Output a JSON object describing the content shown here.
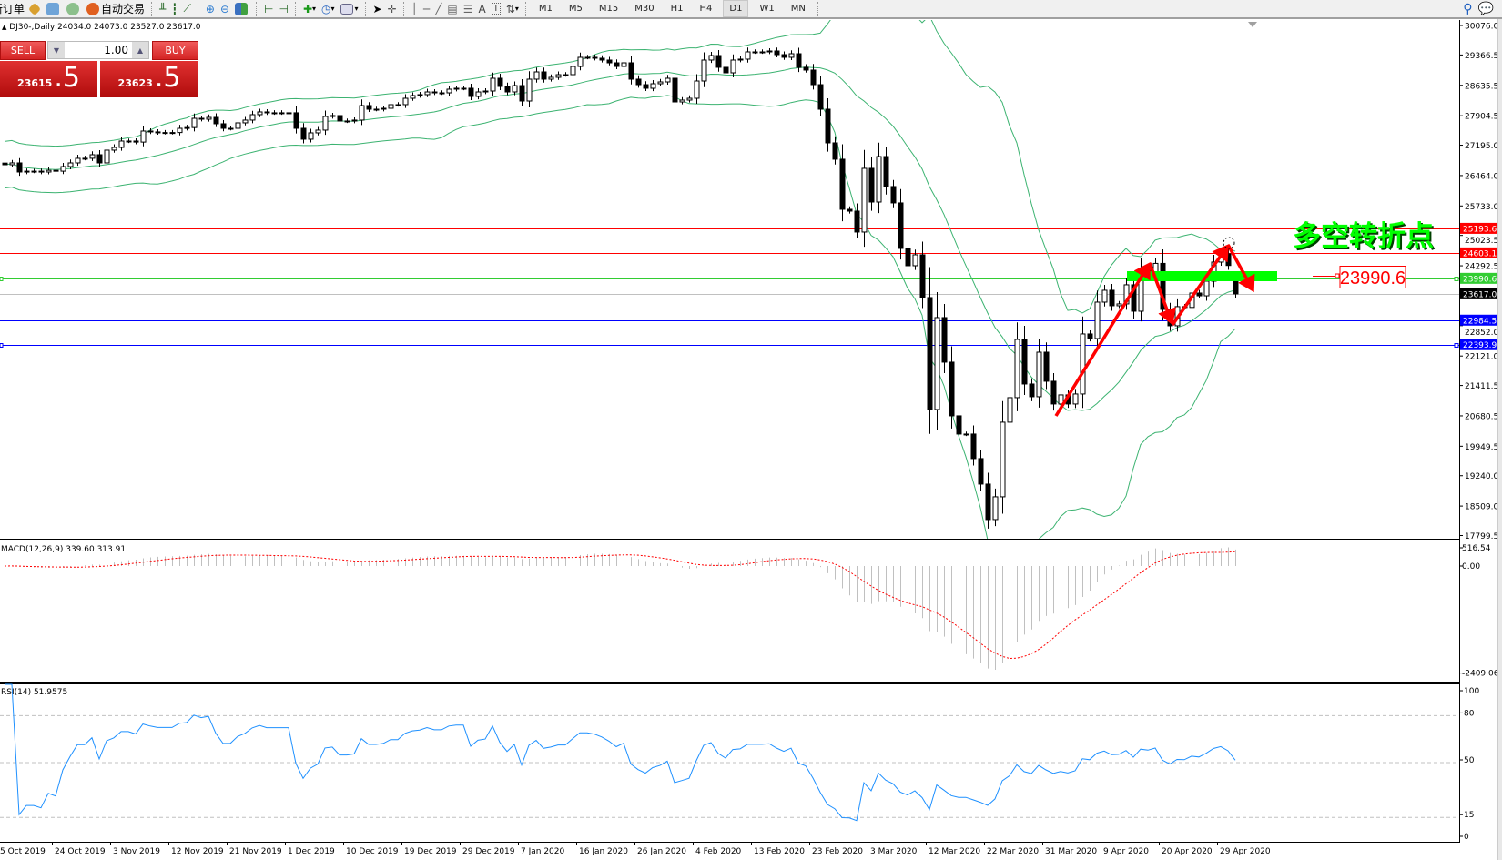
{
  "toolbar": {
    "new_order": "新订单",
    "auto_trading": "自动交易",
    "timeframes": [
      "M1",
      "M5",
      "M15",
      "M30",
      "H1",
      "H4",
      "D1",
      "W1",
      "MN"
    ],
    "active_timeframe": "D1",
    "icons": [
      "folder-icon",
      "profile-icon",
      "signal-icon",
      "auto-trading-icon",
      "bar-chart-icon",
      "candlestick-icon",
      "line-chart-icon",
      "zoom-in-icon",
      "zoom-out-icon",
      "tile-windows-icon",
      "chart-shift-icon",
      "autoscroll-icon",
      "add-indicator-icon",
      "periods-clock-icon",
      "templates-icon",
      "cursor-icon",
      "crosshair-icon",
      "vertical-line-icon",
      "horizontal-line-icon",
      "trendline-icon",
      "fibonacci-icon",
      "fibo-fan-icon",
      "text-icon",
      "text-label-icon",
      "arrows-icon",
      "search-icon",
      "chat-icon"
    ]
  },
  "symbol_header": {
    "symbol": "DJ30-,Daily",
    "ohlc": "24034.0 24073.0 23527.0 23617.0"
  },
  "trade_panel": {
    "sell_label": "SELL",
    "buy_label": "BUY",
    "lot": "1.00",
    "sell_price_main": "23615",
    "sell_price_frac": ".5",
    "buy_price_main": "23623",
    "buy_price_frac": ".5"
  },
  "price_axis": {
    "ticks": [
      "30076.0",
      "29366.5",
      "28635.5",
      "27904.5",
      "27195.0",
      "26464.0",
      "25733.0",
      "25023.5",
      "24292.5",
      "22852.0",
      "22121.0",
      "21411.5",
      "20680.5",
      "19949.5",
      "19240.0",
      "18509.0",
      "17799.5"
    ]
  },
  "levels": [
    {
      "value": "25193.6",
      "color": "#ff0000",
      "text_color": "#ffffff"
    },
    {
      "value": "24603.1",
      "color": "#ff0000",
      "text_color": "#ffffff"
    },
    {
      "value": "23990.6",
      "color": "#32cd32",
      "text_color": "#ffffff"
    },
    {
      "value": "23617.0",
      "color": "#000000",
      "line_color": "#c0c0c0",
      "text_color": "#ffffff"
    },
    {
      "value": "22984.5",
      "color": "#0000ff",
      "text_color": "#ffffff"
    },
    {
      "value": "22393.9",
      "color": "#0000ff",
      "text_color": "#ffffff"
    }
  ],
  "annotations": {
    "title": "多空转折点",
    "price_label": "23990.6",
    "title_color": "#00ff00",
    "arrow_color": "#ff0000",
    "zone_color": "#00ff00"
  },
  "macd": {
    "label": "MACD(12,26,9) 339.60 313.91",
    "axis": [
      "516.54",
      "0.00",
      "-2409.06"
    ],
    "histogram_color": "#c0c0c0",
    "signal_color": "#ff0000"
  },
  "rsi": {
    "label": "RSI(14) 51.9575",
    "axis": [
      "100",
      "80",
      "50",
      "15",
      "0"
    ],
    "levels": [
      80,
      50,
      15
    ],
    "line_color": "#1e90ff"
  },
  "dates": [
    "5 Oct 2019",
    "24 Oct 2019",
    "3 Nov 2019",
    "12 Nov 2019",
    "21 Nov 2019",
    "1 Dec 2019",
    "10 Dec 2019",
    "19 Dec 2019",
    "29 Dec 2019",
    "7 Jan 2020",
    "16 Jan 2020",
    "26 Jan 2020",
    "4 Feb 2020",
    "13 Feb 2020",
    "23 Feb 2020",
    "3 Mar 2020",
    "12 Mar 2020",
    "22 Mar 2020",
    "31 Mar 2020",
    "9 Apr 2020",
    "20 Apr 2020",
    "29 Apr 2020"
  ],
  "chart_data": {
    "type": "candlestick",
    "symbol": "DJ30-,Daily",
    "ylim": [
      17799.5,
      30076.0
    ],
    "last_bar": {
      "open": 24034.0,
      "high": 24073.0,
      "low": 23527.0,
      "close": 23617.0
    },
    "indicators": [
      "Bollinger Bands",
      "MACD(12,26,9)",
      "RSI(14)"
    ],
    "band_color": "#3cb371",
    "closes": [
      26725,
      26769,
      26550,
      26570,
      26570,
      26550,
      26590,
      26570,
      26681,
      26769,
      26879,
      26880,
      26966,
      26769,
      27076,
      27141,
      27295,
      27295,
      27270,
      27536,
      27515,
      27500,
      27500,
      27500,
      27601,
      27620,
      27842,
      27820,
      27864,
      27711,
      27601,
      27601,
      27733,
      27799,
      27930,
      27996,
      27975,
      27975,
      27975,
      27975,
      27601,
      27339,
      27492,
      27558,
      27886,
      27908,
      27777,
      27777,
      27799,
      28149,
      28061,
      28061,
      28083,
      28171,
      28171,
      28324,
      28390,
      28412,
      28477,
      28455,
      28455,
      28543,
      28565,
      28565,
      28368,
      28477,
      28499,
      28806,
      28609,
      28477,
      28630,
      28258,
      28784,
      28959,
      28784,
      28828,
      28893,
      28893,
      29090,
      29310,
      29310,
      29288,
      29244,
      29178,
      29090,
      29178,
      28784,
      28652,
      28565,
      28674,
      28718,
      28806,
      28236,
      28280,
      28324,
      28740,
      29244,
      29353,
      29069,
      28937,
      29244,
      29266,
      29441,
      29441,
      29441,
      29463,
      29375,
      29310,
      29397,
      29069,
      29003,
      28652,
      28061,
      27251,
      26857,
      25652,
      25608,
      25105,
      26638,
      25827,
      26922,
      26200,
      25806,
      24711,
      24294,
      24557,
      23528,
      20834,
      23046,
      21973,
      20681,
      20243,
      20243,
      19652,
      19038,
      18184,
      18732,
      20528,
      21119,
      22520,
      21447,
      21141,
      22213,
      21513,
      20966,
      21185,
      20966,
      21207,
      22652,
      22542,
      23418,
      23703,
      23331,
      23375,
      23835,
      23199,
      24185,
      24100,
      24350,
      23243,
      22849,
      23310,
      23290,
      23637,
      23570,
      23922,
      24382,
      24580,
      24300,
      23617
    ]
  }
}
